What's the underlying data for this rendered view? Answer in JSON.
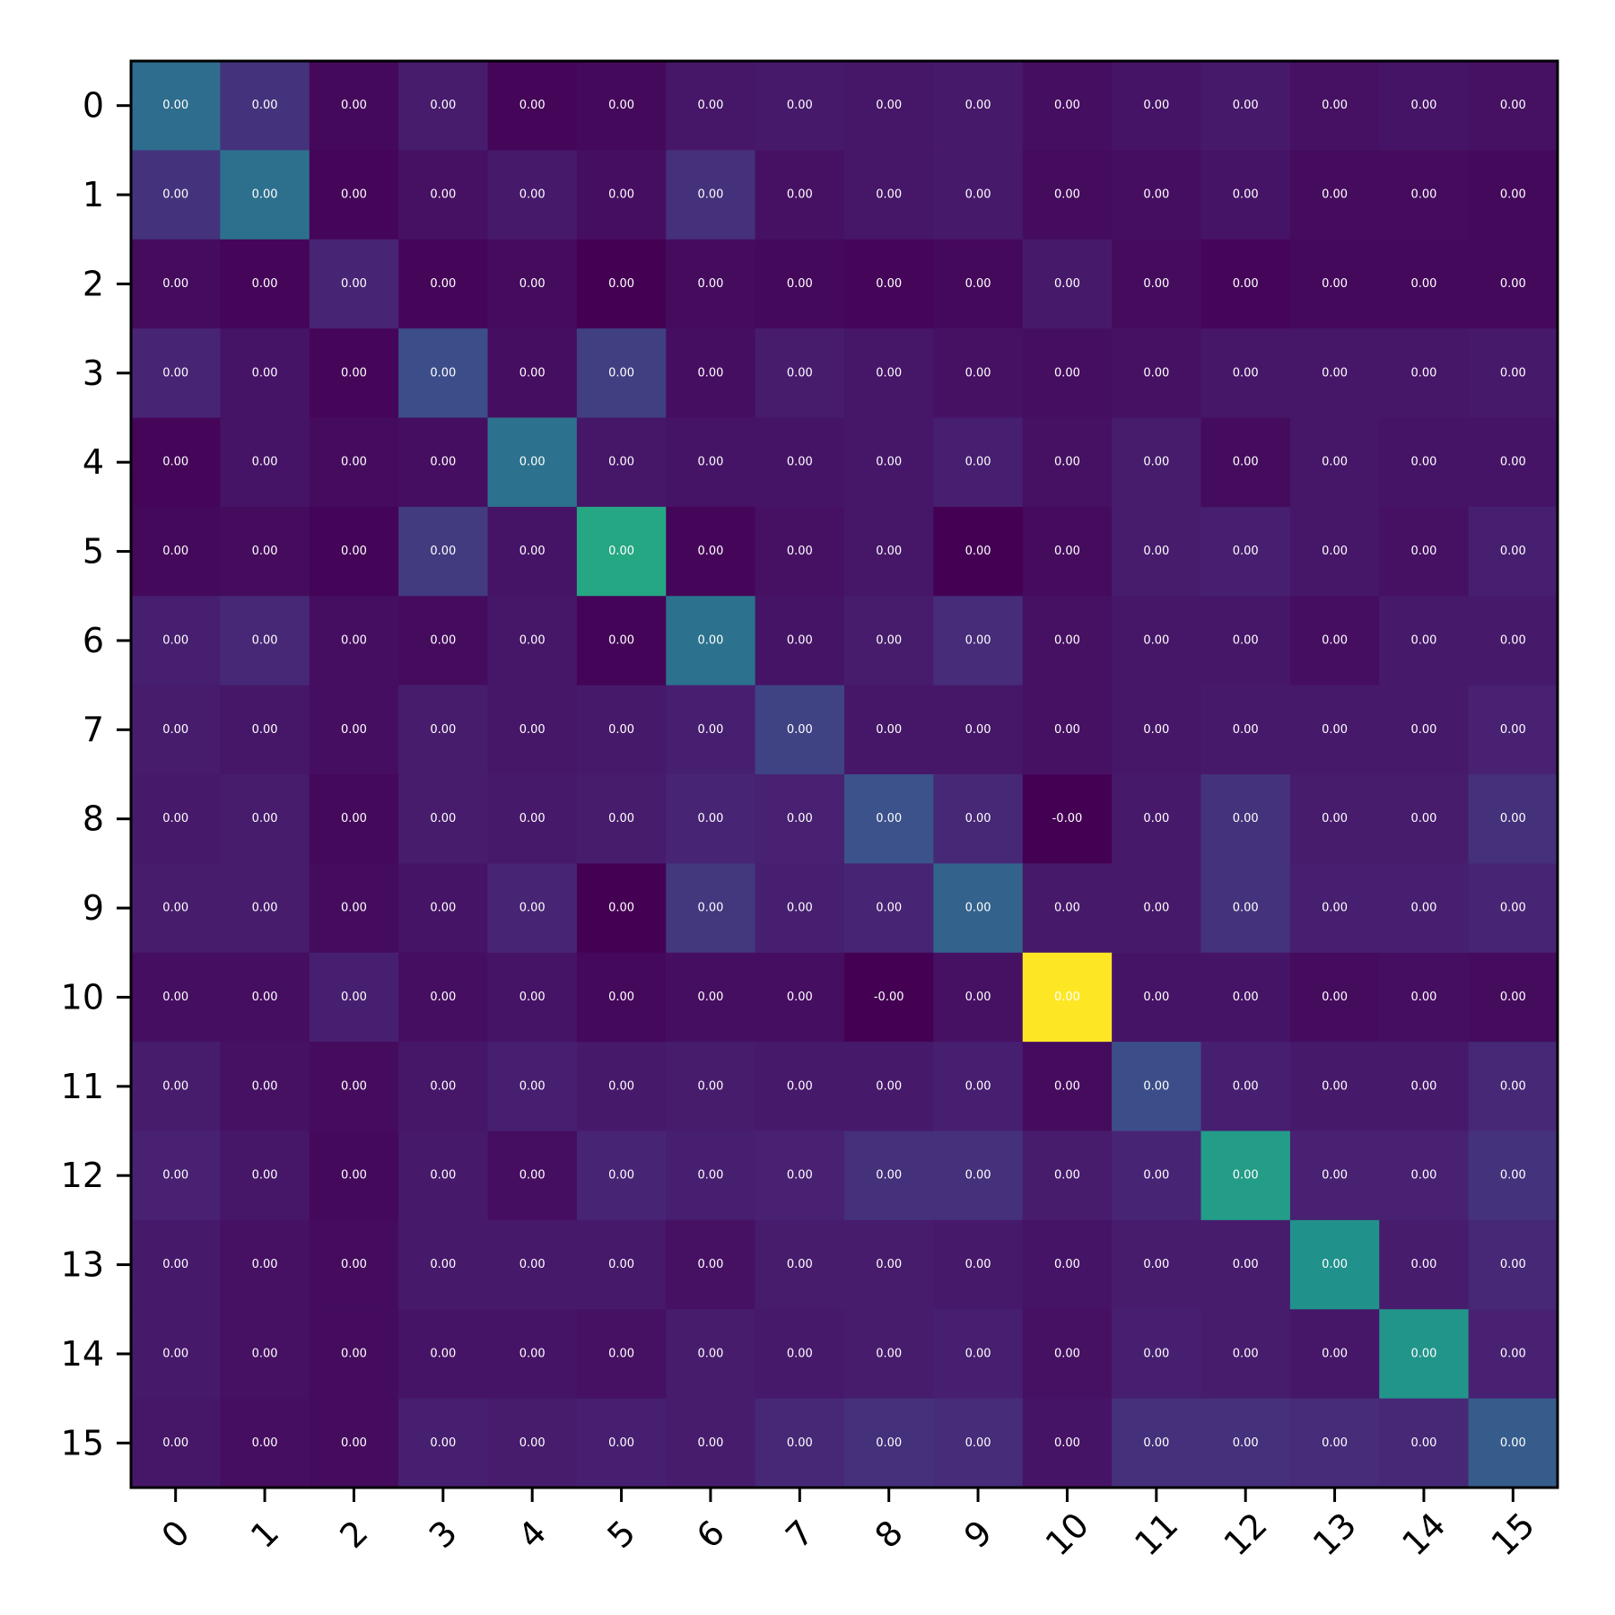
{
  "chart_data": {
    "type": "heatmap",
    "title": "",
    "xlabel": "",
    "ylabel": "",
    "colormap": "viridis",
    "grid": false,
    "legend": "none",
    "x_categories": [
      "0",
      "1",
      "2",
      "3",
      "4",
      "5",
      "6",
      "7",
      "8",
      "9",
      "10",
      "11",
      "12",
      "13",
      "14",
      "15"
    ],
    "y_categories": [
      "0",
      "1",
      "2",
      "3",
      "4",
      "5",
      "6",
      "7",
      "8",
      "9",
      "10",
      "11",
      "12",
      "13",
      "14",
      "15"
    ],
    "intensity": [
      [
        0.36,
        0.17,
        0.03,
        0.1,
        0.02,
        0.03,
        0.08,
        0.09,
        0.08,
        0.09,
        0.05,
        0.07,
        0.09,
        0.06,
        0.07,
        0.06
      ],
      [
        0.17,
        0.37,
        0.02,
        0.06,
        0.09,
        0.05,
        0.16,
        0.06,
        0.08,
        0.09,
        0.04,
        0.05,
        0.07,
        0.04,
        0.04,
        0.03
      ],
      [
        0.04,
        0.02,
        0.13,
        0.02,
        0.04,
        0.0,
        0.04,
        0.03,
        0.02,
        0.03,
        0.09,
        0.04,
        0.02,
        0.03,
        0.03,
        0.03
      ],
      [
        0.13,
        0.07,
        0.02,
        0.24,
        0.05,
        0.2,
        0.05,
        0.1,
        0.08,
        0.06,
        0.05,
        0.06,
        0.08,
        0.08,
        0.08,
        0.09
      ],
      [
        0.02,
        0.07,
        0.04,
        0.05,
        0.38,
        0.08,
        0.07,
        0.07,
        0.08,
        0.11,
        0.06,
        0.1,
        0.04,
        0.08,
        0.07,
        0.07
      ],
      [
        0.03,
        0.04,
        0.01,
        0.19,
        0.07,
        0.6,
        0.02,
        0.06,
        0.08,
        0.0,
        0.04,
        0.1,
        0.11,
        0.08,
        0.06,
        0.11
      ],
      [
        0.11,
        0.14,
        0.05,
        0.04,
        0.08,
        0.01,
        0.38,
        0.07,
        0.1,
        0.15,
        0.06,
        0.08,
        0.08,
        0.05,
        0.09,
        0.09
      ],
      [
        0.1,
        0.08,
        0.05,
        0.1,
        0.08,
        0.09,
        0.11,
        0.21,
        0.08,
        0.08,
        0.06,
        0.08,
        0.09,
        0.09,
        0.09,
        0.12
      ],
      [
        0.09,
        0.1,
        0.03,
        0.1,
        0.09,
        0.1,
        0.13,
        0.12,
        0.25,
        0.14,
        0.0,
        0.09,
        0.17,
        0.1,
        0.1,
        0.16
      ],
      [
        0.1,
        0.1,
        0.04,
        0.07,
        0.13,
        0.0,
        0.18,
        0.11,
        0.13,
        0.32,
        0.09,
        0.09,
        0.17,
        0.11,
        0.11,
        0.13
      ],
      [
        0.05,
        0.05,
        0.11,
        0.05,
        0.07,
        0.03,
        0.05,
        0.05,
        0.0,
        0.06,
        1.0,
        0.07,
        0.07,
        0.04,
        0.05,
        0.04
      ],
      [
        0.1,
        0.06,
        0.04,
        0.08,
        0.11,
        0.09,
        0.1,
        0.09,
        0.09,
        0.11,
        0.04,
        0.24,
        0.11,
        0.09,
        0.09,
        0.14
      ],
      [
        0.12,
        0.08,
        0.03,
        0.09,
        0.05,
        0.13,
        0.11,
        0.12,
        0.16,
        0.16,
        0.1,
        0.13,
        0.55,
        0.12,
        0.12,
        0.17
      ],
      [
        0.09,
        0.06,
        0.04,
        0.09,
        0.09,
        0.09,
        0.06,
        0.1,
        0.1,
        0.09,
        0.07,
        0.1,
        0.1,
        0.5,
        0.1,
        0.14
      ],
      [
        0.09,
        0.06,
        0.04,
        0.07,
        0.07,
        0.06,
        0.1,
        0.09,
        0.1,
        0.11,
        0.06,
        0.11,
        0.1,
        0.08,
        0.52,
        0.12
      ],
      [
        0.08,
        0.05,
        0.04,
        0.11,
        0.1,
        0.11,
        0.1,
        0.14,
        0.16,
        0.15,
        0.07,
        0.16,
        0.16,
        0.15,
        0.14,
        0.29
      ]
    ],
    "cell_labels": [
      [
        "0.00",
        "0.00",
        "0.00",
        "0.00",
        "0.00",
        "0.00",
        "0.00",
        "0.00",
        "0.00",
        "0.00",
        "0.00",
        "0.00",
        "0.00",
        "0.00",
        "0.00",
        "0.00"
      ],
      [
        "0.00",
        "0.00",
        "0.00",
        "0.00",
        "0.00",
        "0.00",
        "0.00",
        "0.00",
        "0.00",
        "0.00",
        "0.00",
        "0.00",
        "0.00",
        "0.00",
        "0.00",
        "0.00"
      ],
      [
        "0.00",
        "0.00",
        "0.00",
        "0.00",
        "0.00",
        "0.00",
        "0.00",
        "0.00",
        "0.00",
        "0.00",
        "0.00",
        "0.00",
        "0.00",
        "0.00",
        "0.00",
        "0.00"
      ],
      [
        "0.00",
        "0.00",
        "0.00",
        "0.00",
        "0.00",
        "0.00",
        "0.00",
        "0.00",
        "0.00",
        "0.00",
        "0.00",
        "0.00",
        "0.00",
        "0.00",
        "0.00",
        "0.00"
      ],
      [
        "0.00",
        "0.00",
        "0.00",
        "0.00",
        "0.00",
        "0.00",
        "0.00",
        "0.00",
        "0.00",
        "0.00",
        "0.00",
        "0.00",
        "0.00",
        "0.00",
        "0.00",
        "0.00"
      ],
      [
        "0.00",
        "0.00",
        "0.00",
        "0.00",
        "0.00",
        "0.00",
        "0.00",
        "0.00",
        "0.00",
        "0.00",
        "0.00",
        "0.00",
        "0.00",
        "0.00",
        "0.00",
        "0.00"
      ],
      [
        "0.00",
        "0.00",
        "0.00",
        "0.00",
        "0.00",
        "0.00",
        "0.00",
        "0.00",
        "0.00",
        "0.00",
        "0.00",
        "0.00",
        "0.00",
        "0.00",
        "0.00",
        "0.00"
      ],
      [
        "0.00",
        "0.00",
        "0.00",
        "0.00",
        "0.00",
        "0.00",
        "0.00",
        "0.00",
        "0.00",
        "0.00",
        "0.00",
        "0.00",
        "0.00",
        "0.00",
        "0.00",
        "0.00"
      ],
      [
        "0.00",
        "0.00",
        "0.00",
        "0.00",
        "0.00",
        "0.00",
        "0.00",
        "0.00",
        "0.00",
        "0.00",
        "-0.00",
        "0.00",
        "0.00",
        "0.00",
        "0.00",
        "0.00"
      ],
      [
        "0.00",
        "0.00",
        "0.00",
        "0.00",
        "0.00",
        "0.00",
        "0.00",
        "0.00",
        "0.00",
        "0.00",
        "0.00",
        "0.00",
        "0.00",
        "0.00",
        "0.00",
        "0.00"
      ],
      [
        "0.00",
        "0.00",
        "0.00",
        "0.00",
        "0.00",
        "0.00",
        "0.00",
        "0.00",
        "-0.00",
        "0.00",
        "0.00",
        "0.00",
        "0.00",
        "0.00",
        "0.00",
        "0.00"
      ],
      [
        "0.00",
        "0.00",
        "0.00",
        "0.00",
        "0.00",
        "0.00",
        "0.00",
        "0.00",
        "0.00",
        "0.00",
        "0.00",
        "0.00",
        "0.00",
        "0.00",
        "0.00",
        "0.00"
      ],
      [
        "0.00",
        "0.00",
        "0.00",
        "0.00",
        "0.00",
        "0.00",
        "0.00",
        "0.00",
        "0.00",
        "0.00",
        "0.00",
        "0.00",
        "0.00",
        "0.00",
        "0.00",
        "0.00"
      ],
      [
        "0.00",
        "0.00",
        "0.00",
        "0.00",
        "0.00",
        "0.00",
        "0.00",
        "0.00",
        "0.00",
        "0.00",
        "0.00",
        "0.00",
        "0.00",
        "0.00",
        "0.00",
        "0.00"
      ],
      [
        "0.00",
        "0.00",
        "0.00",
        "0.00",
        "0.00",
        "0.00",
        "0.00",
        "0.00",
        "0.00",
        "0.00",
        "0.00",
        "0.00",
        "0.00",
        "0.00",
        "0.00",
        "0.00"
      ],
      [
        "0.00",
        "0.00",
        "0.00",
        "0.00",
        "0.00",
        "0.00",
        "0.00",
        "0.00",
        "0.00",
        "0.00",
        "0.00",
        "0.00",
        "0.00",
        "0.00",
        "0.00",
        "0.00"
      ]
    ]
  }
}
